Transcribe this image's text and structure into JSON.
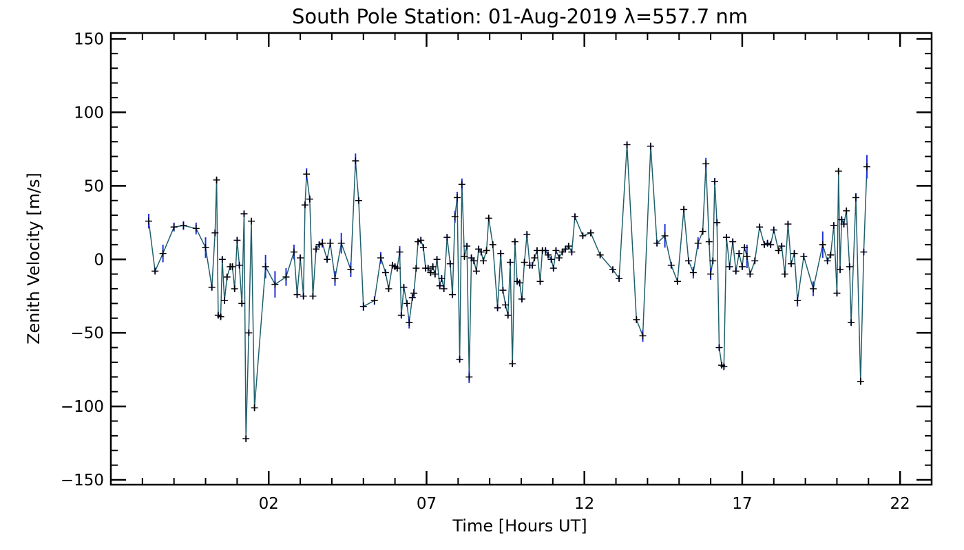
{
  "chart_data": {
    "type": "line",
    "title": "South Pole Station: 01-Aug-2019 λ=557.7 nm",
    "xlabel": "Time [Hours UT]",
    "ylabel": "Zenith Velocity [m/s]",
    "xlim": [
      -3,
      23
    ],
    "ylim": [
      -150,
      150
    ],
    "xticks": [
      {
        "v": 2,
        "label": "02"
      },
      {
        "v": 7,
        "label": "07"
      },
      {
        "v": 12,
        "label": "12"
      },
      {
        "v": 17,
        "label": "17"
      },
      {
        "v": 22,
        "label": "22"
      }
    ],
    "xminor_step": 1,
    "yticks": [
      {
        "v": -150,
        "label": "−150"
      },
      {
        "v": -100,
        "label": "−100"
      },
      {
        "v": -50,
        "label": "−50"
      },
      {
        "v": 0,
        "label": "0"
      },
      {
        "v": 50,
        "label": "50"
      },
      {
        "v": 100,
        "label": "100"
      },
      {
        "v": 150,
        "label": "150"
      }
    ],
    "yminor_step": 10,
    "colors": {
      "line": "#1f5f6b",
      "marker": "#000000",
      "errorbar": "#2030d8",
      "axes": "#000000"
    },
    "series": [
      {
        "name": "Zenith Velocity",
        "points": [
          {
            "x": -1.8,
            "y": 26,
            "err": 5
          },
          {
            "x": -1.6,
            "y": -8,
            "err": 2
          },
          {
            "x": -1.35,
            "y": 4,
            "err": 6
          },
          {
            "x": -1.0,
            "y": 22,
            "err": 3
          },
          {
            "x": -0.7,
            "y": 23,
            "err": 3
          },
          {
            "x": -0.3,
            "y": 21,
            "err": 4
          },
          {
            "x": 0.0,
            "y": 8,
            "err": 7
          },
          {
            "x": 0.2,
            "y": -19,
            "err": 2
          },
          {
            "x": 0.3,
            "y": 18,
            "err": 2
          },
          {
            "x": 0.35,
            "y": 54,
            "err": 2
          },
          {
            "x": 0.4,
            "y": -38,
            "err": 2
          },
          {
            "x": 0.48,
            "y": -39,
            "err": 2
          },
          {
            "x": 0.53,
            "y": 0,
            "err": 2
          },
          {
            "x": 0.6,
            "y": -28,
            "err": 2
          },
          {
            "x": 0.68,
            "y": -12,
            "err": 2
          },
          {
            "x": 0.78,
            "y": -5,
            "err": 2
          },
          {
            "x": 0.85,
            "y": -5,
            "err": 2
          },
          {
            "x": 0.92,
            "y": -20,
            "err": 2
          },
          {
            "x": 1.0,
            "y": 13,
            "err": 2
          },
          {
            "x": 1.07,
            "y": -4,
            "err": 2
          },
          {
            "x": 1.15,
            "y": -30,
            "err": 2
          },
          {
            "x": 1.22,
            "y": 31,
            "err": 2
          },
          {
            "x": 1.28,
            "y": -122,
            "err": 2
          },
          {
            "x": 1.37,
            "y": -50,
            "err": 2
          },
          {
            "x": 1.45,
            "y": 26,
            "err": 2
          },
          {
            "x": 1.55,
            "y": -101,
            "err": 2
          },
          {
            "x": 1.9,
            "y": -5,
            "err": 8
          },
          {
            "x": 2.2,
            "y": -17,
            "err": 9
          },
          {
            "x": 2.55,
            "y": -12,
            "err": 6
          },
          {
            "x": 2.8,
            "y": 5,
            "err": 5
          },
          {
            "x": 2.9,
            "y": -24,
            "err": 2
          },
          {
            "x": 3.0,
            "y": 1,
            "err": 2
          },
          {
            "x": 3.1,
            "y": -25,
            "err": 2
          },
          {
            "x": 3.15,
            "y": 37,
            "err": 2
          },
          {
            "x": 3.2,
            "y": 58,
            "err": 4
          },
          {
            "x": 3.3,
            "y": 41,
            "err": 2
          },
          {
            "x": 3.4,
            "y": -25,
            "err": 2
          },
          {
            "x": 3.5,
            "y": 7,
            "err": 2
          },
          {
            "x": 3.6,
            "y": 10,
            "err": 2
          },
          {
            "x": 3.7,
            "y": 11,
            "err": 3
          },
          {
            "x": 3.85,
            "y": 0,
            "err": 2
          },
          {
            "x": 3.95,
            "y": 11,
            "err": 3
          },
          {
            "x": 4.1,
            "y": -13,
            "err": 5
          },
          {
            "x": 4.3,
            "y": 11,
            "err": 7
          },
          {
            "x": 4.6,
            "y": -7,
            "err": 5
          },
          {
            "x": 4.75,
            "y": 67,
            "err": 5
          },
          {
            "x": 4.85,
            "y": 40,
            "err": 2
          },
          {
            "x": 5.0,
            "y": -32,
            "err": 3
          },
          {
            "x": 5.35,
            "y": -28,
            "err": 3
          },
          {
            "x": 5.55,
            "y": 1,
            "err": 4
          },
          {
            "x": 5.7,
            "y": -9,
            "err": 2
          },
          {
            "x": 5.8,
            "y": -20,
            "err": 2
          },
          {
            "x": 5.92,
            "y": -4,
            "err": 2
          },
          {
            "x": 6.0,
            "y": -5,
            "err": 2
          },
          {
            "x": 6.07,
            "y": -6,
            "err": 2
          },
          {
            "x": 6.15,
            "y": 5,
            "err": 4
          },
          {
            "x": 6.2,
            "y": -38,
            "err": 2
          },
          {
            "x": 6.28,
            "y": -19,
            "err": 2
          },
          {
            "x": 6.38,
            "y": -30,
            "err": 2
          },
          {
            "x": 6.45,
            "y": -43,
            "err": 4
          },
          {
            "x": 6.55,
            "y": -26,
            "err": 2
          },
          {
            "x": 6.6,
            "y": -23,
            "err": 3
          },
          {
            "x": 6.67,
            "y": -6,
            "err": 2
          },
          {
            "x": 6.73,
            "y": 12,
            "err": 2
          },
          {
            "x": 6.82,
            "y": 13,
            "err": 2
          },
          {
            "x": 6.9,
            "y": 8,
            "err": 2
          },
          {
            "x": 6.97,
            "y": -6,
            "err": 2
          },
          {
            "x": 7.05,
            "y": -6,
            "err": 2
          },
          {
            "x": 7.13,
            "y": -9,
            "err": 2
          },
          {
            "x": 7.2,
            "y": -5,
            "err": 2
          },
          {
            "x": 7.27,
            "y": -10,
            "err": 2
          },
          {
            "x": 7.33,
            "y": 0,
            "err": 2
          },
          {
            "x": 7.42,
            "y": -18,
            "err": 2
          },
          {
            "x": 7.48,
            "y": -13,
            "err": 2
          },
          {
            "x": 7.55,
            "y": -20,
            "err": 2
          },
          {
            "x": 7.65,
            "y": 15,
            "err": 2
          },
          {
            "x": 7.75,
            "y": -3,
            "err": 2
          },
          {
            "x": 7.82,
            "y": -24,
            "err": 2
          },
          {
            "x": 7.9,
            "y": 29,
            "err": 4
          },
          {
            "x": 7.97,
            "y": 42,
            "err": 4
          },
          {
            "x": 8.05,
            "y": -68,
            "err": 2
          },
          {
            "x": 8.12,
            "y": 51,
            "err": 4
          },
          {
            "x": 8.2,
            "y": 2,
            "err": 2
          },
          {
            "x": 8.28,
            "y": 9,
            "err": 2
          },
          {
            "x": 8.35,
            "y": -80,
            "err": 4
          },
          {
            "x": 8.42,
            "y": 1,
            "err": 2
          },
          {
            "x": 8.5,
            "y": -1,
            "err": 2
          },
          {
            "x": 8.58,
            "y": -8,
            "err": 2
          },
          {
            "x": 8.65,
            "y": 7,
            "err": 2
          },
          {
            "x": 8.73,
            "y": 5,
            "err": 2
          },
          {
            "x": 8.8,
            "y": -1,
            "err": 2
          },
          {
            "x": 8.9,
            "y": 6,
            "err": 2
          },
          {
            "x": 8.97,
            "y": 28,
            "err": 2
          },
          {
            "x": 9.1,
            "y": 10,
            "err": 2
          },
          {
            "x": 9.25,
            "y": -33,
            "err": 2
          },
          {
            "x": 9.35,
            "y": 4,
            "err": 2
          },
          {
            "x": 9.42,
            "y": -21,
            "err": 2
          },
          {
            "x": 9.5,
            "y": -31,
            "err": 2
          },
          {
            "x": 9.58,
            "y": -38,
            "err": 2
          },
          {
            "x": 9.65,
            "y": -2,
            "err": 2
          },
          {
            "x": 9.72,
            "y": -71,
            "err": 2
          },
          {
            "x": 9.8,
            "y": 12,
            "err": 2
          },
          {
            "x": 9.87,
            "y": -15,
            "err": 2
          },
          {
            "x": 9.95,
            "y": -16,
            "err": 2
          },
          {
            "x": 10.02,
            "y": -27,
            "err": 2
          },
          {
            "x": 10.1,
            "y": -2,
            "err": 2
          },
          {
            "x": 10.18,
            "y": 17,
            "err": 2
          },
          {
            "x": 10.27,
            "y": -4,
            "err": 2
          },
          {
            "x": 10.35,
            "y": -4,
            "err": 2
          },
          {
            "x": 10.42,
            "y": 1,
            "err": 2
          },
          {
            "x": 10.5,
            "y": 6,
            "err": 2
          },
          {
            "x": 10.6,
            "y": -15,
            "err": 2
          },
          {
            "x": 10.67,
            "y": 6,
            "err": 2
          },
          {
            "x": 10.77,
            "y": 6,
            "err": 2
          },
          {
            "x": 10.85,
            "y": 3,
            "err": 2
          },
          {
            "x": 10.95,
            "y": 0,
            "err": 2
          },
          {
            "x": 11.02,
            "y": -6,
            "err": 2
          },
          {
            "x": 11.1,
            "y": 6,
            "err": 2
          },
          {
            "x": 11.2,
            "y": 1,
            "err": 2
          },
          {
            "x": 11.3,
            "y": 5,
            "err": 2
          },
          {
            "x": 11.4,
            "y": 7,
            "err": 2
          },
          {
            "x": 11.5,
            "y": 9,
            "err": 2
          },
          {
            "x": 11.6,
            "y": 5,
            "err": 2
          },
          {
            "x": 11.7,
            "y": 29,
            "err": 2
          },
          {
            "x": 11.95,
            "y": 16,
            "err": 2
          },
          {
            "x": 12.2,
            "y": 18,
            "err": 2
          },
          {
            "x": 12.5,
            "y": 3,
            "err": 2
          },
          {
            "x": 12.9,
            "y": -7,
            "err": 2
          },
          {
            "x": 13.1,
            "y": -13,
            "err": 2
          },
          {
            "x": 13.35,
            "y": 78,
            "err": 2
          },
          {
            "x": 13.65,
            "y": -41,
            "err": 2
          },
          {
            "x": 13.85,
            "y": -52,
            "err": 4
          },
          {
            "x": 14.1,
            "y": 77,
            "err": 2
          },
          {
            "x": 14.3,
            "y": 11,
            "err": 2
          },
          {
            "x": 14.55,
            "y": 16,
            "err": 8
          },
          {
            "x": 14.75,
            "y": -4,
            "err": 2
          },
          {
            "x": 14.95,
            "y": -15,
            "err": 2
          },
          {
            "x": 15.15,
            "y": 34,
            "err": 2
          },
          {
            "x": 15.3,
            "y": -1,
            "err": 2
          },
          {
            "x": 15.45,
            "y": -9,
            "err": 4
          },
          {
            "x": 15.6,
            "y": 11,
            "err": 4
          },
          {
            "x": 15.75,
            "y": 19,
            "err": 2
          },
          {
            "x": 15.85,
            "y": 65,
            "err": 4
          },
          {
            "x": 15.95,
            "y": 12,
            "err": 2
          },
          {
            "x": 16.0,
            "y": -10,
            "err": 4
          },
          {
            "x": 16.07,
            "y": -1,
            "err": 2
          },
          {
            "x": 16.13,
            "y": 53,
            "err": 2
          },
          {
            "x": 16.2,
            "y": 25,
            "err": 2
          },
          {
            "x": 16.27,
            "y": -60,
            "err": 2
          },
          {
            "x": 16.35,
            "y": -72,
            "err": 2
          },
          {
            "x": 16.42,
            "y": -73,
            "err": 2
          },
          {
            "x": 16.5,
            "y": 15,
            "err": 2
          },
          {
            "x": 16.6,
            "y": -5,
            "err": 2
          },
          {
            "x": 16.7,
            "y": 12,
            "err": 2
          },
          {
            "x": 16.8,
            "y": -8,
            "err": 2
          },
          {
            "x": 16.9,
            "y": 4,
            "err": 2
          },
          {
            "x": 17.0,
            "y": -5,
            "err": 2
          },
          {
            "x": 17.07,
            "y": 8,
            "err": 2
          },
          {
            "x": 17.15,
            "y": 2,
            "err": 8
          },
          {
            "x": 17.25,
            "y": -10,
            "err": 2
          },
          {
            "x": 17.4,
            "y": -1,
            "err": 2
          },
          {
            "x": 17.55,
            "y": 22,
            "err": 2
          },
          {
            "x": 17.7,
            "y": 10,
            "err": 2
          },
          {
            "x": 17.8,
            "y": 11,
            "err": 2
          },
          {
            "x": 17.9,
            "y": 10,
            "err": 2
          },
          {
            "x": 18.0,
            "y": 20,
            "err": 2
          },
          {
            "x": 18.15,
            "y": 6,
            "err": 2
          },
          {
            "x": 18.25,
            "y": 9,
            "err": 2
          },
          {
            "x": 18.35,
            "y": -10,
            "err": 2
          },
          {
            "x": 18.45,
            "y": 24,
            "err": 2
          },
          {
            "x": 18.55,
            "y": -3,
            "err": 2
          },
          {
            "x": 18.65,
            "y": 4,
            "err": 2
          },
          {
            "x": 18.75,
            "y": -28,
            "err": 4
          },
          {
            "x": 18.95,
            "y": 2,
            "err": 2
          },
          {
            "x": 19.25,
            "y": -20,
            "err": 5
          },
          {
            "x": 19.55,
            "y": 10,
            "err": 9
          },
          {
            "x": 19.7,
            "y": -1,
            "err": 2
          },
          {
            "x": 19.8,
            "y": 3,
            "err": 2
          },
          {
            "x": 19.9,
            "y": 23,
            "err": 2
          },
          {
            "x": 20.0,
            "y": -23,
            "err": 2
          },
          {
            "x": 20.05,
            "y": 60,
            "err": 2
          },
          {
            "x": 20.1,
            "y": -7,
            "err": 2
          },
          {
            "x": 20.15,
            "y": 27,
            "err": 2
          },
          {
            "x": 20.22,
            "y": 24,
            "err": 2
          },
          {
            "x": 20.3,
            "y": 33,
            "err": 2
          },
          {
            "x": 20.4,
            "y": -5,
            "err": 2
          },
          {
            "x": 20.45,
            "y": -43,
            "err": 2
          },
          {
            "x": 20.6,
            "y": 42,
            "err": 3
          },
          {
            "x": 20.75,
            "y": -83,
            "err": 2
          },
          {
            "x": 20.85,
            "y": 5,
            "err": 2
          },
          {
            "x": 20.95,
            "y": 63,
            "err": 8
          }
        ]
      }
    ]
  }
}
